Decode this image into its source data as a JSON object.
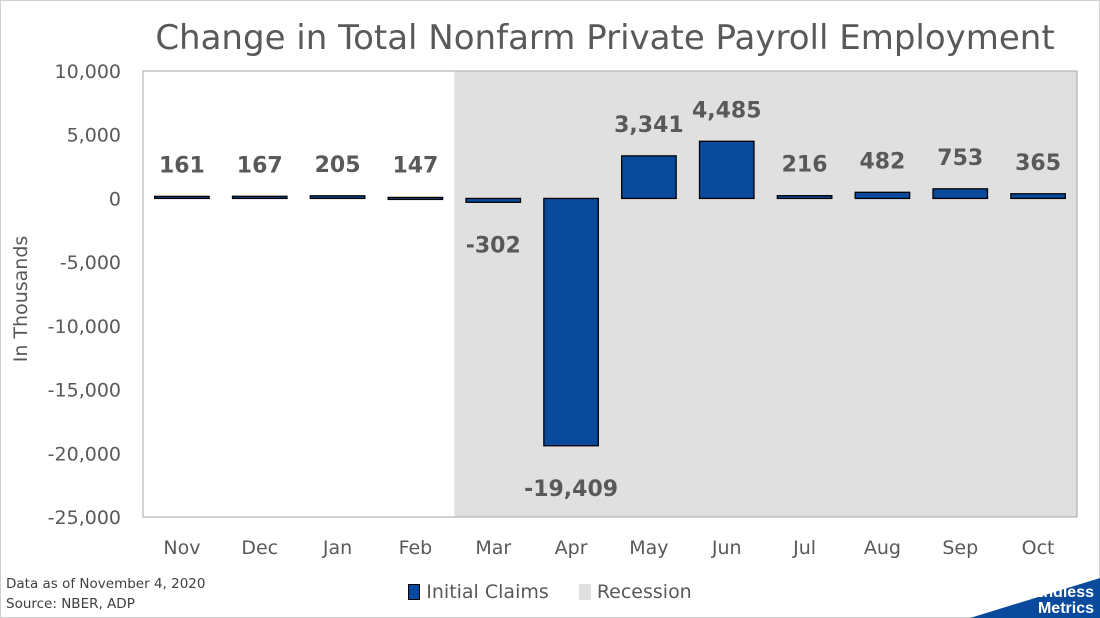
{
  "chart_data": {
    "type": "bar",
    "title": "Change in Total Nonfarm Private Payroll Employment",
    "ylabel": "In Thousands",
    "xlabel": "",
    "ylim": [
      -25000,
      10000
    ],
    "yticks": [
      10000,
      5000,
      0,
      -5000,
      -10000,
      -15000,
      -20000,
      -25000
    ],
    "ytick_labels": [
      "10,000",
      "5,000",
      "0",
      "-5,000",
      "-10,000",
      "-15,000",
      "-20,000",
      "-25,000"
    ],
    "categories": [
      "Nov",
      "Dec",
      "Jan",
      "Feb",
      "Mar",
      "Apr",
      "May",
      "Jun",
      "Jul",
      "Aug",
      "Sep",
      "Oct"
    ],
    "series": [
      {
        "name": "Initial Claims",
        "values": [
          161,
          167,
          205,
          147,
          -302,
          -19409,
          3341,
          4485,
          216,
          482,
          753,
          365
        ],
        "labels": [
          "161",
          "167",
          "205",
          "147",
          "-302",
          "-19,409",
          "3,341",
          "4,485",
          "216",
          "482",
          "753",
          "365"
        ],
        "color": "#0a4a9c"
      }
    ],
    "recession": {
      "name": "Recession",
      "start": "Mar",
      "end": "Oct",
      "color": "#e0e0e0"
    },
    "grid": false,
    "legend": "bottom"
  },
  "footnote": {
    "line1": "Data as of November 4, 2020",
    "line2": "Source: NBER, ADP"
  },
  "logo": {
    "line1": "Endless",
    "line2": "Metrics",
    "color": "#0a4a9c"
  },
  "colors": {
    "text": "#595959",
    "bar_outline": "#000000"
  }
}
